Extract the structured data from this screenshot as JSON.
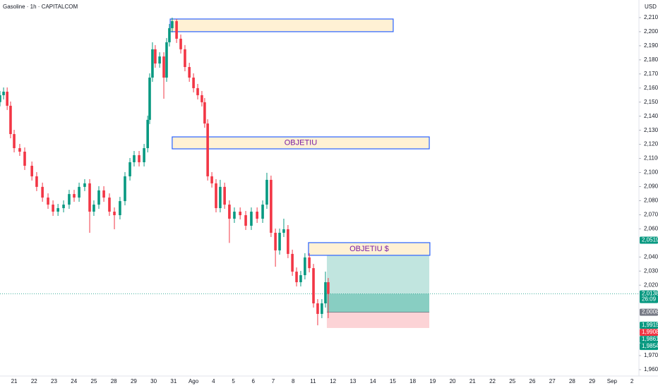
{
  "chart_data": {
    "type": "candlestick",
    "title": "Gasoline · 1h · CAPITALCOM",
    "currency": "USD",
    "categories": [
      "21",
      "22",
      "23",
      "24",
      "25",
      "28",
      "29",
      "30",
      "31",
      "Ago",
      "4",
      "5",
      "6",
      "7",
      "8",
      "11",
      "12",
      "13",
      "14",
      "15",
      "18",
      "19",
      "20",
      "21",
      "22",
      "25",
      "26",
      "27",
      "28",
      "29",
      "Sep",
      "2"
    ],
    "xlim": [
      -0.71,
      31.35
    ],
    "ylim": [
      1.9555,
      2.2225
    ],
    "yticks": [
      {
        "value": 2.21,
        "label": "2,2100"
      },
      {
        "value": 2.2,
        "label": "2,2000"
      },
      {
        "value": 2.19,
        "label": "2,1900"
      },
      {
        "value": 2.18,
        "label": "2,1800"
      },
      {
        "value": 2.17,
        "label": "2,1700"
      },
      {
        "value": 2.16,
        "label": "2,1600"
      },
      {
        "value": 2.15,
        "label": "2,1500"
      },
      {
        "value": 2.14,
        "label": "2,1400"
      },
      {
        "value": 2.13,
        "label": "2,1300"
      },
      {
        "value": 2.12,
        "label": "2,1200"
      },
      {
        "value": 2.11,
        "label": "2,1100"
      },
      {
        "value": 2.1,
        "label": "2,1000"
      },
      {
        "value": 2.09,
        "label": "2,0900"
      },
      {
        "value": 2.08,
        "label": "2,0800"
      },
      {
        "value": 2.07,
        "label": "2,0700"
      },
      {
        "value": 2.06,
        "label": "2,0600"
      },
      {
        "value": 2.04,
        "label": "2,0400"
      },
      {
        "value": 2.03,
        "label": "2,0300"
      },
      {
        "value": 2.02,
        "label": "2,0200"
      },
      {
        "value": 1.97,
        "label": "1,9700"
      },
      {
        "value": 1.96,
        "label": "1,9600"
      }
    ],
    "up_color": "#089981",
    "down_color": "#f23645",
    "x": [
      -0.71,
      -0.53,
      -0.35,
      -0.18,
      0,
      0.28,
      0.53,
      0.89,
      1.13,
      1.42,
      1.7,
      1.95,
      2.2,
      2.48,
      2.76,
      3.01,
      3.26,
      3.54,
      3.79,
      4.0,
      4.25,
      4.5,
      4.78,
      5.03,
      5.31,
      5.56,
      5.81,
      6.02,
      6.27,
      6.52,
      6.7,
      6.8,
      6.94,
      7.08,
      7.3,
      7.51,
      7.65,
      7.79,
      7.93,
      8.15,
      8.36,
      8.57,
      8.79,
      9.0,
      9.21,
      9.42,
      9.56,
      9.71,
      9.92,
      10.13,
      10.34,
      10.56,
      10.8,
      11.05,
      11.34,
      11.62,
      11.9,
      12.19,
      12.47,
      12.68,
      12.89,
      13.11,
      13.32,
      13.53,
      13.74,
      13.96,
      14.17,
      14.38,
      14.59,
      14.81,
      15.02,
      15.23,
      15.44,
      15.62,
      15.76
    ],
    "open": [
      2.15,
      2.1549,
      2.1574,
      2.1474,
      2.1273,
      2.1173,
      2.1148,
      2.1048,
      2.0973,
      2.0898,
      2.0822,
      2.0772,
      2.0722,
      2.0747,
      2.0772,
      2.0847,
      2.0822,
      2.0898,
      2.0923,
      2.0722,
      2.0772,
      2.0873,
      2.0822,
      2.0722,
      2.0697,
      2.0797,
      2.0973,
      2.1073,
      2.1123,
      2.1073,
      2.1173,
      2.1374,
      2.1674,
      2.1875,
      2.1774,
      2.1824,
      2.1674,
      2.1925,
      2.2025,
      2.2075,
      2.195,
      2.1875,
      2.1749,
      2.1674,
      2.1599,
      2.1549,
      2.1499,
      2.1348,
      2.0973,
      2.0923,
      2.0747,
      2.0898,
      2.0772,
      2.0672,
      2.0722,
      2.0697,
      2.0622,
      2.0722,
      2.0672,
      2.0772,
      2.0948,
      2.0572,
      2.0447,
      2.0572,
      2.0597,
      2.0422,
      2.0296,
      2.0221,
      2.0271,
      2.0397,
      2.0321,
      2.0071,
      1.9996,
      2.0071,
      2.0221
    ],
    "high": [
      2.1579,
      2.1604,
      2.1604,
      2.1504,
      2.1303,
      2.1203,
      2.1178,
      2.1078,
      2.1003,
      2.0928,
      2.0852,
      2.0802,
      2.0777,
      2.0802,
      2.0877,
      2.0877,
      2.0928,
      2.0953,
      2.0953,
      2.0802,
      2.0903,
      2.0903,
      2.0852,
      2.0752,
      2.0827,
      2.1003,
      2.1103,
      2.1153,
      2.1153,
      2.1203,
      2.1404,
      2.1704,
      2.1925,
      2.1905,
      2.1854,
      2.1854,
      2.1955,
      2.2055,
      2.21,
      2.209,
      2.198,
      2.1905,
      2.1779,
      2.1704,
      2.1629,
      2.1579,
      2.1529,
      2.1378,
      2.1003,
      2.0953,
      2.0948,
      2.0928,
      2.0802,
      2.0752,
      2.0752,
      2.0727,
      2.0752,
      2.0752,
      2.0802,
      2.0998,
      2.0978,
      2.0602,
      2.0602,
      2.0672,
      2.0627,
      2.0452,
      2.0326,
      2.0301,
      2.0427,
      2.0427,
      2.0351,
      2.0101,
      2.0101,
      2.0296,
      2.0251
    ],
    "low": [
      2.147,
      2.1519,
      2.1444,
      2.1243,
      2.1143,
      2.1118,
      2.1018,
      2.0943,
      2.0868,
      2.0792,
      2.0742,
      2.0692,
      2.0692,
      2.0717,
      2.0742,
      2.0792,
      2.0792,
      2.0868,
      2.0572,
      2.0692,
      2.0742,
      2.0792,
      2.0692,
      2.0597,
      2.0667,
      2.0767,
      2.0943,
      2.1043,
      2.1043,
      2.1043,
      2.1143,
      2.1344,
      2.1644,
      2.1744,
      2.1744,
      2.1524,
      2.1644,
      2.1895,
      2.1995,
      2.192,
      2.1845,
      2.1719,
      2.1644,
      2.1569,
      2.1519,
      2.1469,
      2.1318,
      2.0943,
      2.0893,
      2.0717,
      2.0717,
      2.0742,
      2.05,
      2.0642,
      2.0667,
      2.0592,
      2.0592,
      2.0642,
      2.0642,
      2.0742,
      2.0542,
      2.0331,
      2.0417,
      2.0542,
      2.0392,
      2.0266,
      2.0191,
      2.0191,
      2.0241,
      2.0291,
      2.0041,
      1.9915,
      1.9966,
      2.0041,
      1.9966
    ],
    "close": [
      2.1549,
      2.1574,
      2.1474,
      2.1273,
      2.1173,
      2.1148,
      2.1048,
      2.0973,
      2.0898,
      2.0822,
      2.0772,
      2.0722,
      2.0747,
      2.0772,
      2.0847,
      2.0822,
      2.0898,
      2.0923,
      2.0722,
      2.0772,
      2.0873,
      2.0822,
      2.0722,
      2.0697,
      2.0797,
      2.0973,
      2.1073,
      2.1123,
      2.1073,
      2.1173,
      2.1374,
      2.1674,
      2.1875,
      2.1774,
      2.1824,
      2.1674,
      2.1925,
      2.2025,
      2.2075,
      2.195,
      2.1875,
      2.1749,
      2.1674,
      2.1599,
      2.1549,
      2.1499,
      2.1348,
      2.0973,
      2.0923,
      2.0747,
      2.0898,
      2.0772,
      2.0672,
      2.0722,
      2.0697,
      2.0622,
      2.0722,
      2.0672,
      2.0772,
      2.0948,
      2.0572,
      2.0447,
      2.0572,
      2.0597,
      2.0422,
      2.0296,
      2.0221,
      2.0271,
      2.0397,
      2.0321,
      2.0071,
      1.9996,
      2.0071,
      2.0221,
      2.0138
    ],
    "boxes": [
      {
        "x": [
          7.83,
          19.02
        ],
        "y": [
          2.2,
          2.209
        ]
      },
      {
        "x": [
          7.93,
          20.83
        ],
        "y": [
          2.1168,
          2.1253
        ],
        "label": "OBJETIU"
      },
      {
        "x": [
          14.77,
          20.86
        ],
        "y": [
          2.0412,
          2.0502
        ],
        "label": "OBJETIU $"
      }
    ],
    "position": {
      "x": [
        15.69,
        20.83
      ],
      "target": 2.0412,
      "entry": 2.0008,
      "stop": 1.9896
    },
    "price_tags": [
      {
        "value": 2.0519,
        "label": "2,0519",
        "color": "#089981"
      },
      {
        "value": 2.0138,
        "label": "2,0138",
        "color": "#089981",
        "countdown": "26:09"
      },
      {
        "value": 2.0008,
        "label": "2,0008",
        "color": "#787b86"
      },
      {
        "value": 1.9915,
        "label": "1,9915",
        "color": "#089981"
      },
      {
        "value": 1.9908,
        "label": "1,9908",
        "color": "#f23645"
      },
      {
        "value": 1.9861,
        "label": "1,9861",
        "color": "#089981"
      },
      {
        "value": 1.9854,
        "label": "1,9854",
        "color": "#089981"
      }
    ]
  }
}
